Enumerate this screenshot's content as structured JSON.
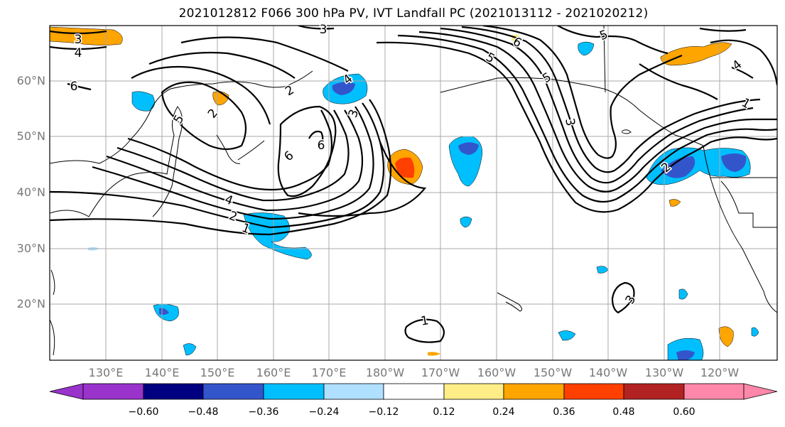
{
  "title": "2021012812 F066 300 hPa PV, IVT Landfall PC (2021013112 - 2021020212)",
  "latitude_labels": [
    "60°N",
    "50°N",
    "40°N",
    "30°N",
    "20°N"
  ],
  "longitude_labels": [
    "130°E",
    "140°E",
    "150°E",
    "160°E",
    "170°E",
    "180°W",
    "170°W",
    "160°W",
    "150°W",
    "140°W",
    "130°W",
    "120°W"
  ],
  "contour_labels": [
    "3",
    "4",
    "6",
    "2",
    "2",
    "6",
    "5",
    "3",
    "6",
    "4",
    "2",
    "1",
    "4",
    "3",
    "5",
    "6",
    "5",
    "3",
    "2",
    "1",
    "1",
    "3",
    "4",
    "5"
  ],
  "colorbar": {
    "tick_labels": [
      "−0.60",
      "−0.48",
      "−0.36",
      "−0.24",
      "−0.12",
      "0.12",
      "0.24",
      "0.36",
      "0.48",
      "0.60"
    ],
    "colors": [
      "#9933cc",
      "#000080",
      "#3355cc",
      "#00bfff",
      "#b0e0ff",
      "#ffffff",
      "#ffee88",
      "#ffa500",
      "#ff4000",
      "#b22222",
      "#ff88aa"
    ]
  }
}
